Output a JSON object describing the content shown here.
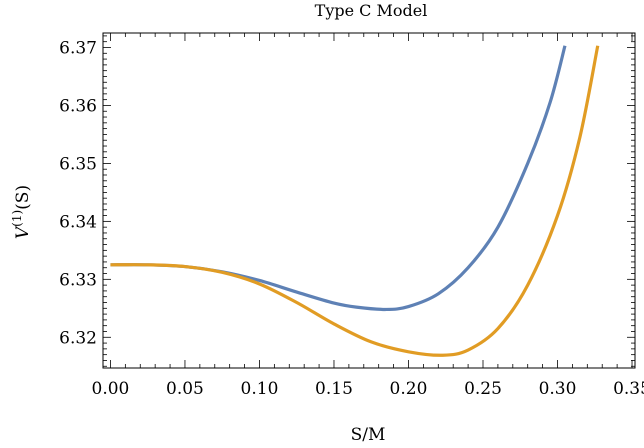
{
  "chart_data": {
    "type": "line",
    "title": "Type C Model",
    "xlabel": "S/M",
    "ylabel_main": "V",
    "ylabel_sup": "(1)",
    "ylabel_tail": "(S)",
    "xlim": [
      -0.005,
      0.352
    ],
    "ylim": [
      6.3147,
      6.3725
    ],
    "x_ticks": [
      0.0,
      0.05,
      0.1,
      0.15,
      0.2,
      0.25,
      0.3,
      0.35
    ],
    "x_tick_labels": [
      "0.00",
      "0.05",
      "0.10",
      "0.15",
      "0.20",
      "0.25",
      "0.30",
      "0.35"
    ],
    "y_ticks": [
      6.32,
      6.33,
      6.34,
      6.35,
      6.36,
      6.37
    ],
    "y_tick_labels": [
      "6.32",
      "6.33",
      "6.34",
      "6.35",
      "6.36",
      "6.37"
    ],
    "grid": false,
    "series": [
      {
        "color": "#5E81B5",
        "x": [
          0.0,
          0.025,
          0.05,
          0.075,
          0.1,
          0.125,
          0.15,
          0.165,
          0.185,
          0.2,
          0.22,
          0.24,
          0.26,
          0.28,
          0.295,
          0.305
        ],
        "y": [
          6.3325,
          6.3325,
          6.3322,
          6.3313,
          6.3298,
          6.3278,
          6.3259,
          6.3252,
          6.3248,
          6.3253,
          6.3275,
          6.332,
          6.339,
          6.35,
          6.3605,
          6.3703
        ]
      },
      {
        "color": "#E19C24",
        "x": [
          0.0,
          0.025,
          0.05,
          0.075,
          0.1,
          0.125,
          0.15,
          0.175,
          0.2,
          0.223,
          0.24,
          0.26,
          0.28,
          0.3,
          0.315,
          0.327
        ],
        "y": [
          6.3325,
          6.3325,
          6.3322,
          6.3312,
          6.3292,
          6.326,
          6.3223,
          6.3192,
          6.3175,
          6.3169,
          6.3178,
          6.3215,
          6.329,
          6.341,
          6.3545,
          6.3703
        ]
      }
    ]
  }
}
